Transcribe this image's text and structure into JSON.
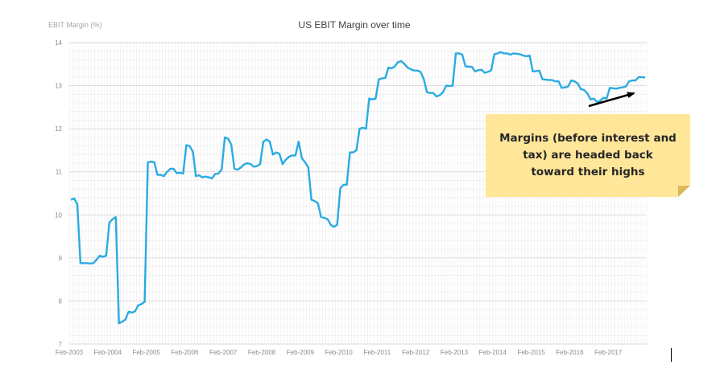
{
  "chart_data": {
    "type": "line",
    "title": "US EBIT Margin over time",
    "ylabel": "EBIT Margin (%)",
    "xlabel": "",
    "ylim": [
      7,
      14
    ],
    "yticks": [
      7,
      8,
      9,
      10,
      11,
      12,
      13,
      14
    ],
    "xtick_labels": [
      "Feb-2003",
      "Feb-2004",
      "Feb-2005",
      "Feb-2006",
      "Feb-2007",
      "Feb-2008",
      "Feb-2009",
      "Feb-2010",
      "Feb-2011",
      "Feb-2012",
      "Feb-2013",
      "Feb-2014",
      "Feb-2015",
      "Feb-2016",
      "Feb-2017"
    ],
    "x_start": "Feb-2003",
    "x_end": "Dec-2017",
    "grid": true,
    "line_color": "#29abe2",
    "series": [
      {
        "values": [
          10.35,
          10.38,
          10.25,
          8.88,
          8.88,
          8.88,
          8.87,
          8.88,
          8.96,
          9.05,
          9.03,
          9.05,
          9.82,
          9.9,
          9.95,
          7.48,
          7.52,
          7.57,
          7.75,
          7.73,
          7.76,
          7.9,
          7.93,
          7.98,
          11.22,
          11.24,
          11.22,
          10.93,
          10.93,
          10.9,
          11.0,
          11.07,
          11.07,
          10.97,
          10.98,
          10.96,
          11.62,
          11.6,
          11.47,
          10.9,
          10.92,
          10.87,
          10.89,
          10.87,
          10.85,
          10.95,
          10.96,
          11.05,
          11.8,
          11.77,
          11.63,
          11.07,
          11.05,
          11.1,
          11.17,
          11.2,
          11.18,
          11.12,
          11.13,
          11.18,
          11.7,
          11.75,
          11.7,
          11.4,
          11.45,
          11.42,
          11.18,
          11.28,
          11.35,
          11.38,
          11.38,
          11.7,
          11.32,
          11.22,
          11.1,
          10.35,
          10.32,
          10.27,
          9.95,
          9.93,
          9.9,
          9.77,
          9.72,
          9.77,
          10.62,
          10.7,
          10.7,
          11.45,
          11.45,
          11.5,
          12.0,
          12.02,
          12.0,
          12.7,
          12.68,
          12.7,
          13.15,
          13.17,
          13.18,
          13.42,
          13.4,
          13.45,
          13.55,
          13.57,
          13.5,
          13.42,
          13.38,
          13.35,
          13.35,
          13.32,
          13.15,
          12.85,
          12.83,
          12.83,
          12.75,
          12.78,
          12.85,
          13.0,
          12.99,
          13.0,
          13.75,
          13.75,
          13.72,
          13.45,
          13.44,
          13.44,
          13.33,
          13.36,
          13.37,
          13.3,
          13.32,
          13.35,
          13.73,
          13.75,
          13.78,
          13.75,
          13.75,
          13.72,
          13.75,
          13.74,
          13.73,
          13.7,
          13.68,
          13.7,
          13.33,
          13.34,
          13.35,
          13.15,
          13.14,
          13.13,
          13.13,
          13.1,
          13.1,
          12.95,
          12.96,
          12.98,
          13.12,
          13.1,
          13.05,
          12.92,
          12.9,
          12.82,
          12.68,
          12.7,
          12.62,
          12.65,
          12.72,
          12.7,
          12.95,
          12.94,
          12.93,
          12.95,
          12.96,
          12.98,
          13.1,
          13.12,
          13.12,
          13.2,
          13.2,
          13.19
        ]
      }
    ]
  },
  "annotation": {
    "text_line1": "Margins (before interest and",
    "text_line2": "tax) are headed back",
    "text_line3": "toward their highs",
    "note_color": "#ffe699",
    "arrow_color": "#000000"
  }
}
